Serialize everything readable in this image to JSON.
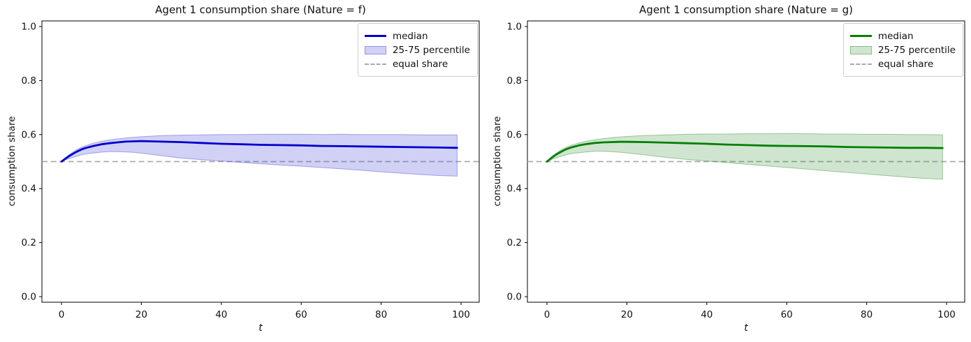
{
  "figure": {
    "background": "#ffffff"
  },
  "chart_data": [
    {
      "type": "line",
      "title": "Agent 1 consumption share (Nature = f)",
      "xlabel": "t",
      "ylabel": "consumption share",
      "xlim": [
        -5,
        105
      ],
      "ylim": [
        0,
        1
      ],
      "xticks": [
        0,
        20,
        40,
        60,
        80,
        100
      ],
      "yticks": [
        0.0,
        0.2,
        0.4,
        0.6,
        0.8,
        1.0
      ],
      "grid": false,
      "legend_position": "upper right",
      "x": [
        0,
        1,
        2,
        3,
        4,
        5,
        6,
        8,
        10,
        12,
        14,
        16,
        18,
        20,
        25,
        30,
        35,
        40,
        45,
        50,
        55,
        60,
        65,
        70,
        75,
        80,
        85,
        90,
        95,
        99
      ],
      "series": [
        {
          "name": "median",
          "type": "line",
          "color": "#0000cc",
          "values": [
            0.5,
            0.511,
            0.521,
            0.53,
            0.538,
            0.545,
            0.55,
            0.558,
            0.564,
            0.568,
            0.571,
            0.574,
            0.575,
            0.576,
            0.574,
            0.572,
            0.569,
            0.566,
            0.564,
            0.562,
            0.561,
            0.56,
            0.558,
            0.557,
            0.556,
            0.555,
            0.554,
            0.553,
            0.552,
            0.551
          ]
        },
        {
          "name": "25-75 percentile",
          "type": "band",
          "fill": "rgba(72,72,220,0.25)",
          "edge": "rgba(72,72,220,0.45)",
          "upper": [
            0.5,
            0.515,
            0.527,
            0.537,
            0.546,
            0.553,
            0.559,
            0.568,
            0.575,
            0.58,
            0.584,
            0.587,
            0.59,
            0.592,
            0.596,
            0.598,
            0.599,
            0.6,
            0.6,
            0.601,
            0.601,
            0.601,
            0.6,
            0.601,
            0.6,
            0.6,
            0.6,
            0.599,
            0.599,
            0.599
          ],
          "lower": [
            0.5,
            0.506,
            0.511,
            0.516,
            0.521,
            0.525,
            0.528,
            0.532,
            0.535,
            0.537,
            0.537,
            0.536,
            0.534,
            0.531,
            0.522,
            0.513,
            0.507,
            0.502,
            0.497,
            0.492,
            0.487,
            0.483,
            0.478,
            0.473,
            0.468,
            0.462,
            0.457,
            0.452,
            0.448,
            0.446
          ]
        },
        {
          "name": "equal share",
          "type": "hline",
          "style": "dashed",
          "color": "#aaaaaa",
          "value": 0.5
        }
      ]
    },
    {
      "type": "line",
      "title": "Agent 1 consumption share (Nature = g)",
      "xlabel": "t",
      "ylabel": "consumption share",
      "xlim": [
        -5,
        105
      ],
      "ylim": [
        0,
        1
      ],
      "xticks": [
        0,
        20,
        40,
        60,
        80,
        100
      ],
      "yticks": [
        0.0,
        0.2,
        0.4,
        0.6,
        0.8,
        1.0
      ],
      "grid": false,
      "legend_position": "upper right",
      "x": [
        0,
        1,
        2,
        3,
        4,
        5,
        6,
        8,
        10,
        12,
        14,
        16,
        18,
        20,
        25,
        30,
        35,
        40,
        45,
        50,
        55,
        60,
        65,
        70,
        75,
        80,
        85,
        90,
        95,
        99
      ],
      "series": [
        {
          "name": "median",
          "type": "line",
          "color": "#008000",
          "values": [
            0.5,
            0.512,
            0.523,
            0.532,
            0.54,
            0.547,
            0.552,
            0.56,
            0.565,
            0.569,
            0.571,
            0.572,
            0.573,
            0.573,
            0.572,
            0.57,
            0.568,
            0.566,
            0.563,
            0.561,
            0.559,
            0.558,
            0.557,
            0.556,
            0.554,
            0.553,
            0.552,
            0.551,
            0.551,
            0.55
          ]
        },
        {
          "name": "25-75 percentile",
          "type": "band",
          "fill": "rgba(40,135,40,0.22)",
          "edge": "rgba(40,135,40,0.42)",
          "upper": [
            0.5,
            0.516,
            0.528,
            0.538,
            0.547,
            0.554,
            0.56,
            0.569,
            0.576,
            0.581,
            0.585,
            0.588,
            0.591,
            0.593,
            0.597,
            0.599,
            0.601,
            0.602,
            0.602,
            0.603,
            0.603,
            0.604,
            0.603,
            0.602,
            0.602,
            0.601,
            0.601,
            0.6,
            0.6,
            0.599
          ],
          "lower": [
            0.5,
            0.507,
            0.512,
            0.517,
            0.522,
            0.526,
            0.529,
            0.533,
            0.536,
            0.538,
            0.538,
            0.537,
            0.535,
            0.532,
            0.524,
            0.515,
            0.508,
            0.502,
            0.496,
            0.49,
            0.484,
            0.478,
            0.472,
            0.466,
            0.46,
            0.454,
            0.448,
            0.442,
            0.437,
            0.435
          ]
        },
        {
          "name": "equal share",
          "type": "hline",
          "style": "dashed",
          "color": "#aaaaaa",
          "value": 0.5
        }
      ]
    }
  ]
}
